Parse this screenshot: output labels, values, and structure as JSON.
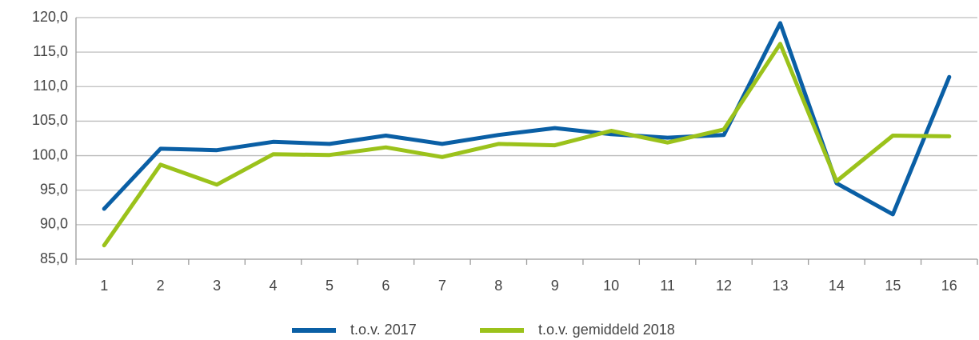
{
  "chart_data": {
    "type": "line",
    "categories": [
      "1",
      "2",
      "3",
      "4",
      "5",
      "6",
      "7",
      "8",
      "9",
      "10",
      "11",
      "12",
      "13",
      "14",
      "15",
      "16"
    ],
    "series": [
      {
        "name": "t.o.v. 2017",
        "color": "#0a5fa5",
        "values": [
          92.3,
          101.0,
          100.8,
          102.0,
          101.7,
          102.9,
          101.7,
          103.0,
          104.0,
          103.1,
          102.6,
          103.0,
          119.2,
          96.0,
          91.5,
          111.4
        ]
      },
      {
        "name": "t.o.v. gemiddeld 2018",
        "color": "#9bc21b",
        "values": [
          87.0,
          98.7,
          95.8,
          100.2,
          100.1,
          101.2,
          99.8,
          101.7,
          101.5,
          103.6,
          101.9,
          103.8,
          116.2,
          96.3,
          102.9,
          102.8
        ]
      }
    ],
    "ylim": [
      85,
      120
    ],
    "yticks": [
      {
        "value": 85,
        "label": "85,0"
      },
      {
        "value": 90,
        "label": "90,0"
      },
      {
        "value": 95,
        "label": "95,0"
      },
      {
        "value": 100,
        "label": "100,0"
      },
      {
        "value": 105,
        "label": "105,0"
      },
      {
        "value": 110,
        "label": "110,0"
      },
      {
        "value": 115,
        "label": "115,0"
      },
      {
        "value": 120,
        "label": "120,0"
      }
    ],
    "grid": true,
    "legend": "bottom"
  }
}
